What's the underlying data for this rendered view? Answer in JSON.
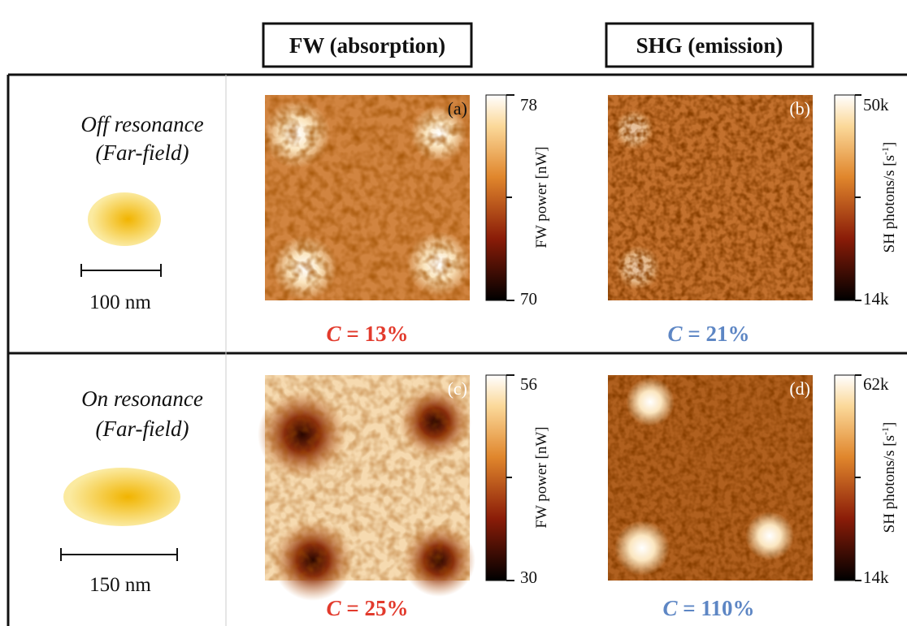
{
  "columns": [
    "FW (absorption)",
    "SHG (emission)"
  ],
  "rows": [
    {
      "label": [
        "Off resonance",
        "(Far-field)"
      ],
      "scale": "100 nm",
      "panels": [
        {
          "tag": "(a)",
          "cbar_label": [
            "FW power [nW]"
          ],
          "cbar_max": "78",
          "cbar_min": "70",
          "contrast_symbol": "C",
          "contrast": "= 13%"
        },
        {
          "tag": "(b)",
          "cbar_label": [
            "SH photons/s [s",
            "-1",
            "]"
          ],
          "cbar_max": "50k",
          "cbar_min": "14k",
          "contrast_symbol": "C",
          "contrast": "= 21%"
        }
      ]
    },
    {
      "label": [
        "On resonance",
        "(Far-field)"
      ],
      "scale": "150 nm",
      "panels": [
        {
          "tag": "(c)",
          "cbar_label": [
            "FW power [nW]"
          ],
          "cbar_max": "56",
          "cbar_min": "30",
          "contrast_symbol": "C",
          "contrast": "= 25%"
        },
        {
          "tag": "(d)",
          "cbar_label": [
            "SH photons/s [s",
            "-1",
            "]"
          ],
          "cbar_max": "62k",
          "cbar_min": "14k",
          "contrast_symbol": "C",
          "contrast": "= 110%"
        }
      ]
    }
  ]
}
